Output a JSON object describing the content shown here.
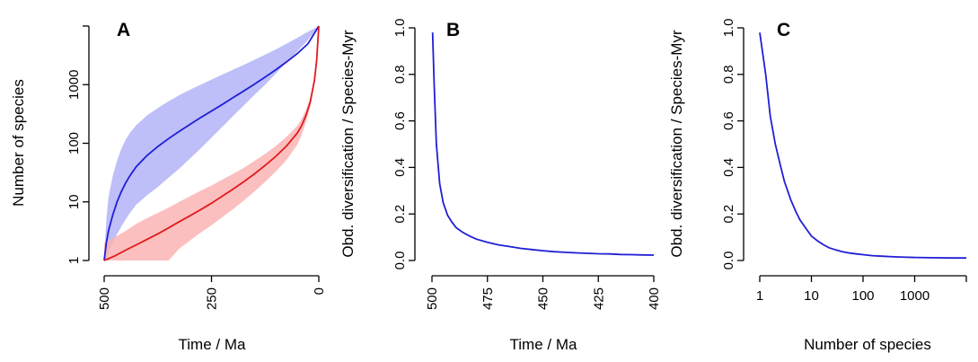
{
  "colors": {
    "blue": "#1f1fd6",
    "blue_band": "#b3b3f7",
    "red": "#e31a1c",
    "red_band": "#fbb4b4",
    "overlap": "#c7a0d8"
  },
  "chart_data": [
    {
      "panel": "A",
      "type": "line",
      "xlabel": "Time / Ma",
      "ylabel": "Number of species",
      "xlim": [
        500,
        0
      ],
      "ylim": [
        1,
        10000
      ],
      "y_scale": "log",
      "x_ticks": [
        500,
        250,
        0
      ],
      "x_tick_labels": [
        "500",
        "250",
        "0"
      ],
      "y_ticks": [
        1,
        10,
        100,
        1000,
        10000
      ],
      "y_tick_labels": [
        "1",
        "10",
        "100",
        "1000",
        ""
      ],
      "series": [
        {
          "color": "blue",
          "x": [
            500,
            495,
            490,
            480,
            470,
            460,
            450,
            440,
            425,
            400,
            375,
            350,
            325,
            300,
            275,
            250,
            225,
            200,
            175,
            150,
            125,
            100,
            75,
            50,
            25,
            0
          ],
          "y": [
            1,
            2,
            3.2,
            6,
            10,
            15,
            21,
            28,
            40,
            62,
            88,
            120,
            160,
            210,
            275,
            355,
            460,
            600,
            780,
            1020,
            1350,
            1800,
            2450,
            3400,
            5000,
            10000
          ],
          "band_lower": [
            1,
            1.1,
            1.3,
            2,
            2.8,
            3.8,
            5,
            6.5,
            9,
            13,
            18,
            26,
            37,
            55,
            82,
            125,
            190,
            290,
            440,
            670,
            1000,
            1550,
            2400,
            3700,
            5800,
            10000
          ],
          "band_upper": [
            1,
            5,
            12,
            28,
            50,
            80,
            115,
            150,
            205,
            300,
            400,
            520,
            660,
            820,
            1000,
            1220,
            1480,
            1800,
            2180,
            2650,
            3250,
            4000,
            5000,
            6300,
            8000,
            10000
          ]
        },
        {
          "color": "red",
          "x": [
            500,
            475,
            450,
            425,
            400,
            375,
            350,
            325,
            300,
            275,
            250,
            225,
            200,
            175,
            150,
            125,
            100,
            75,
            50,
            40,
            30,
            20,
            10,
            5,
            0
          ],
          "y": [
            1,
            1.2,
            1.5,
            1.85,
            2.3,
            2.85,
            3.6,
            4.6,
            5.8,
            7.4,
            9.5,
            12.5,
            16.5,
            22,
            30,
            42,
            60,
            90,
            150,
            200,
            300,
            500,
            1200,
            2600,
            10000
          ],
          "band_lower": [
            1,
            1,
            1,
            1,
            1,
            1,
            1,
            1.6,
            2.2,
            3,
            4,
            5.5,
            7.5,
            10.5,
            15,
            22,
            33,
            52,
            95,
            140,
            230,
            420,
            1100,
            2500,
            10000
          ],
          "band_upper": [
            2,
            2.5,
            3.2,
            4.2,
            5.3,
            6.5,
            8,
            10,
            12.5,
            15.5,
            19,
            24,
            30,
            38,
            50,
            66,
            90,
            130,
            200,
            260,
            370,
            600,
            1350,
            2800,
            10000
          ]
        }
      ]
    },
    {
      "panel": "B",
      "type": "line",
      "xlabel": "Time / Ma",
      "ylabel": "Obd. diversification / Species-Myr",
      "xlim": [
        500,
        400
      ],
      "ylim": [
        0,
        1
      ],
      "x_ticks": [
        500,
        475,
        450,
        425,
        400
      ],
      "x_tick_labels": [
        "500",
        "475",
        "450",
        "425",
        "400"
      ],
      "y_ticks": [
        0,
        0.2,
        0.4,
        0.6,
        0.8,
        1.0
      ],
      "y_tick_labels": [
        "0.0",
        "0.2",
        "0.4",
        "0.6",
        "0.8",
        "1.0"
      ],
      "series": [
        {
          "color": "blue",
          "x": [
            499.7,
            499,
            498,
            496.5,
            495,
            493,
            491,
            489,
            486,
            483,
            480,
            475,
            470,
            465,
            460,
            455,
            450,
            445,
            440,
            435,
            430,
            425,
            420,
            415,
            410,
            405,
            400
          ],
          "y": [
            0.98,
            0.75,
            0.5,
            0.33,
            0.25,
            0.195,
            0.165,
            0.14,
            0.12,
            0.105,
            0.092,
            0.078,
            0.067,
            0.06,
            0.052,
            0.047,
            0.042,
            0.038,
            0.035,
            0.033,
            0.031,
            0.029,
            0.028,
            0.026,
            0.025,
            0.024,
            0.023
          ]
        }
      ]
    },
    {
      "panel": "C",
      "type": "line",
      "xlabel": "Number of species",
      "ylabel": "Obd. diversification / Species-Myr",
      "xlim": [
        1,
        10000
      ],
      "x_scale": "log",
      "ylim": [
        0,
        1
      ],
      "x_ticks": [
        1,
        10,
        100,
        1000,
        10000
      ],
      "x_tick_labels": [
        "1",
        "10",
        "100",
        "1000",
        ""
      ],
      "y_ticks": [
        0,
        0.2,
        0.4,
        0.6,
        0.8,
        1.0
      ],
      "y_tick_labels": [
        "0.0",
        "0.2",
        "0.4",
        "0.6",
        "0.8",
        "1.0"
      ],
      "series": [
        {
          "color": "blue",
          "x": [
            1,
            1.3,
            1.6,
            2,
            2.5,
            3,
            4,
            5,
            6,
            8,
            10,
            13,
            17,
            22,
            30,
            40,
            55,
            75,
            100,
            150,
            250,
            400,
            700,
            1000,
            2000,
            5000,
            10000
          ],
          "y": [
            0.98,
            0.8,
            0.62,
            0.5,
            0.41,
            0.34,
            0.26,
            0.21,
            0.175,
            0.135,
            0.105,
            0.085,
            0.068,
            0.055,
            0.045,
            0.038,
            0.032,
            0.028,
            0.025,
            0.021,
            0.018,
            0.016,
            0.014,
            0.013,
            0.012,
            0.011,
            0.011
          ]
        }
      ]
    }
  ],
  "panel_labels": [
    "A",
    "B",
    "C"
  ]
}
